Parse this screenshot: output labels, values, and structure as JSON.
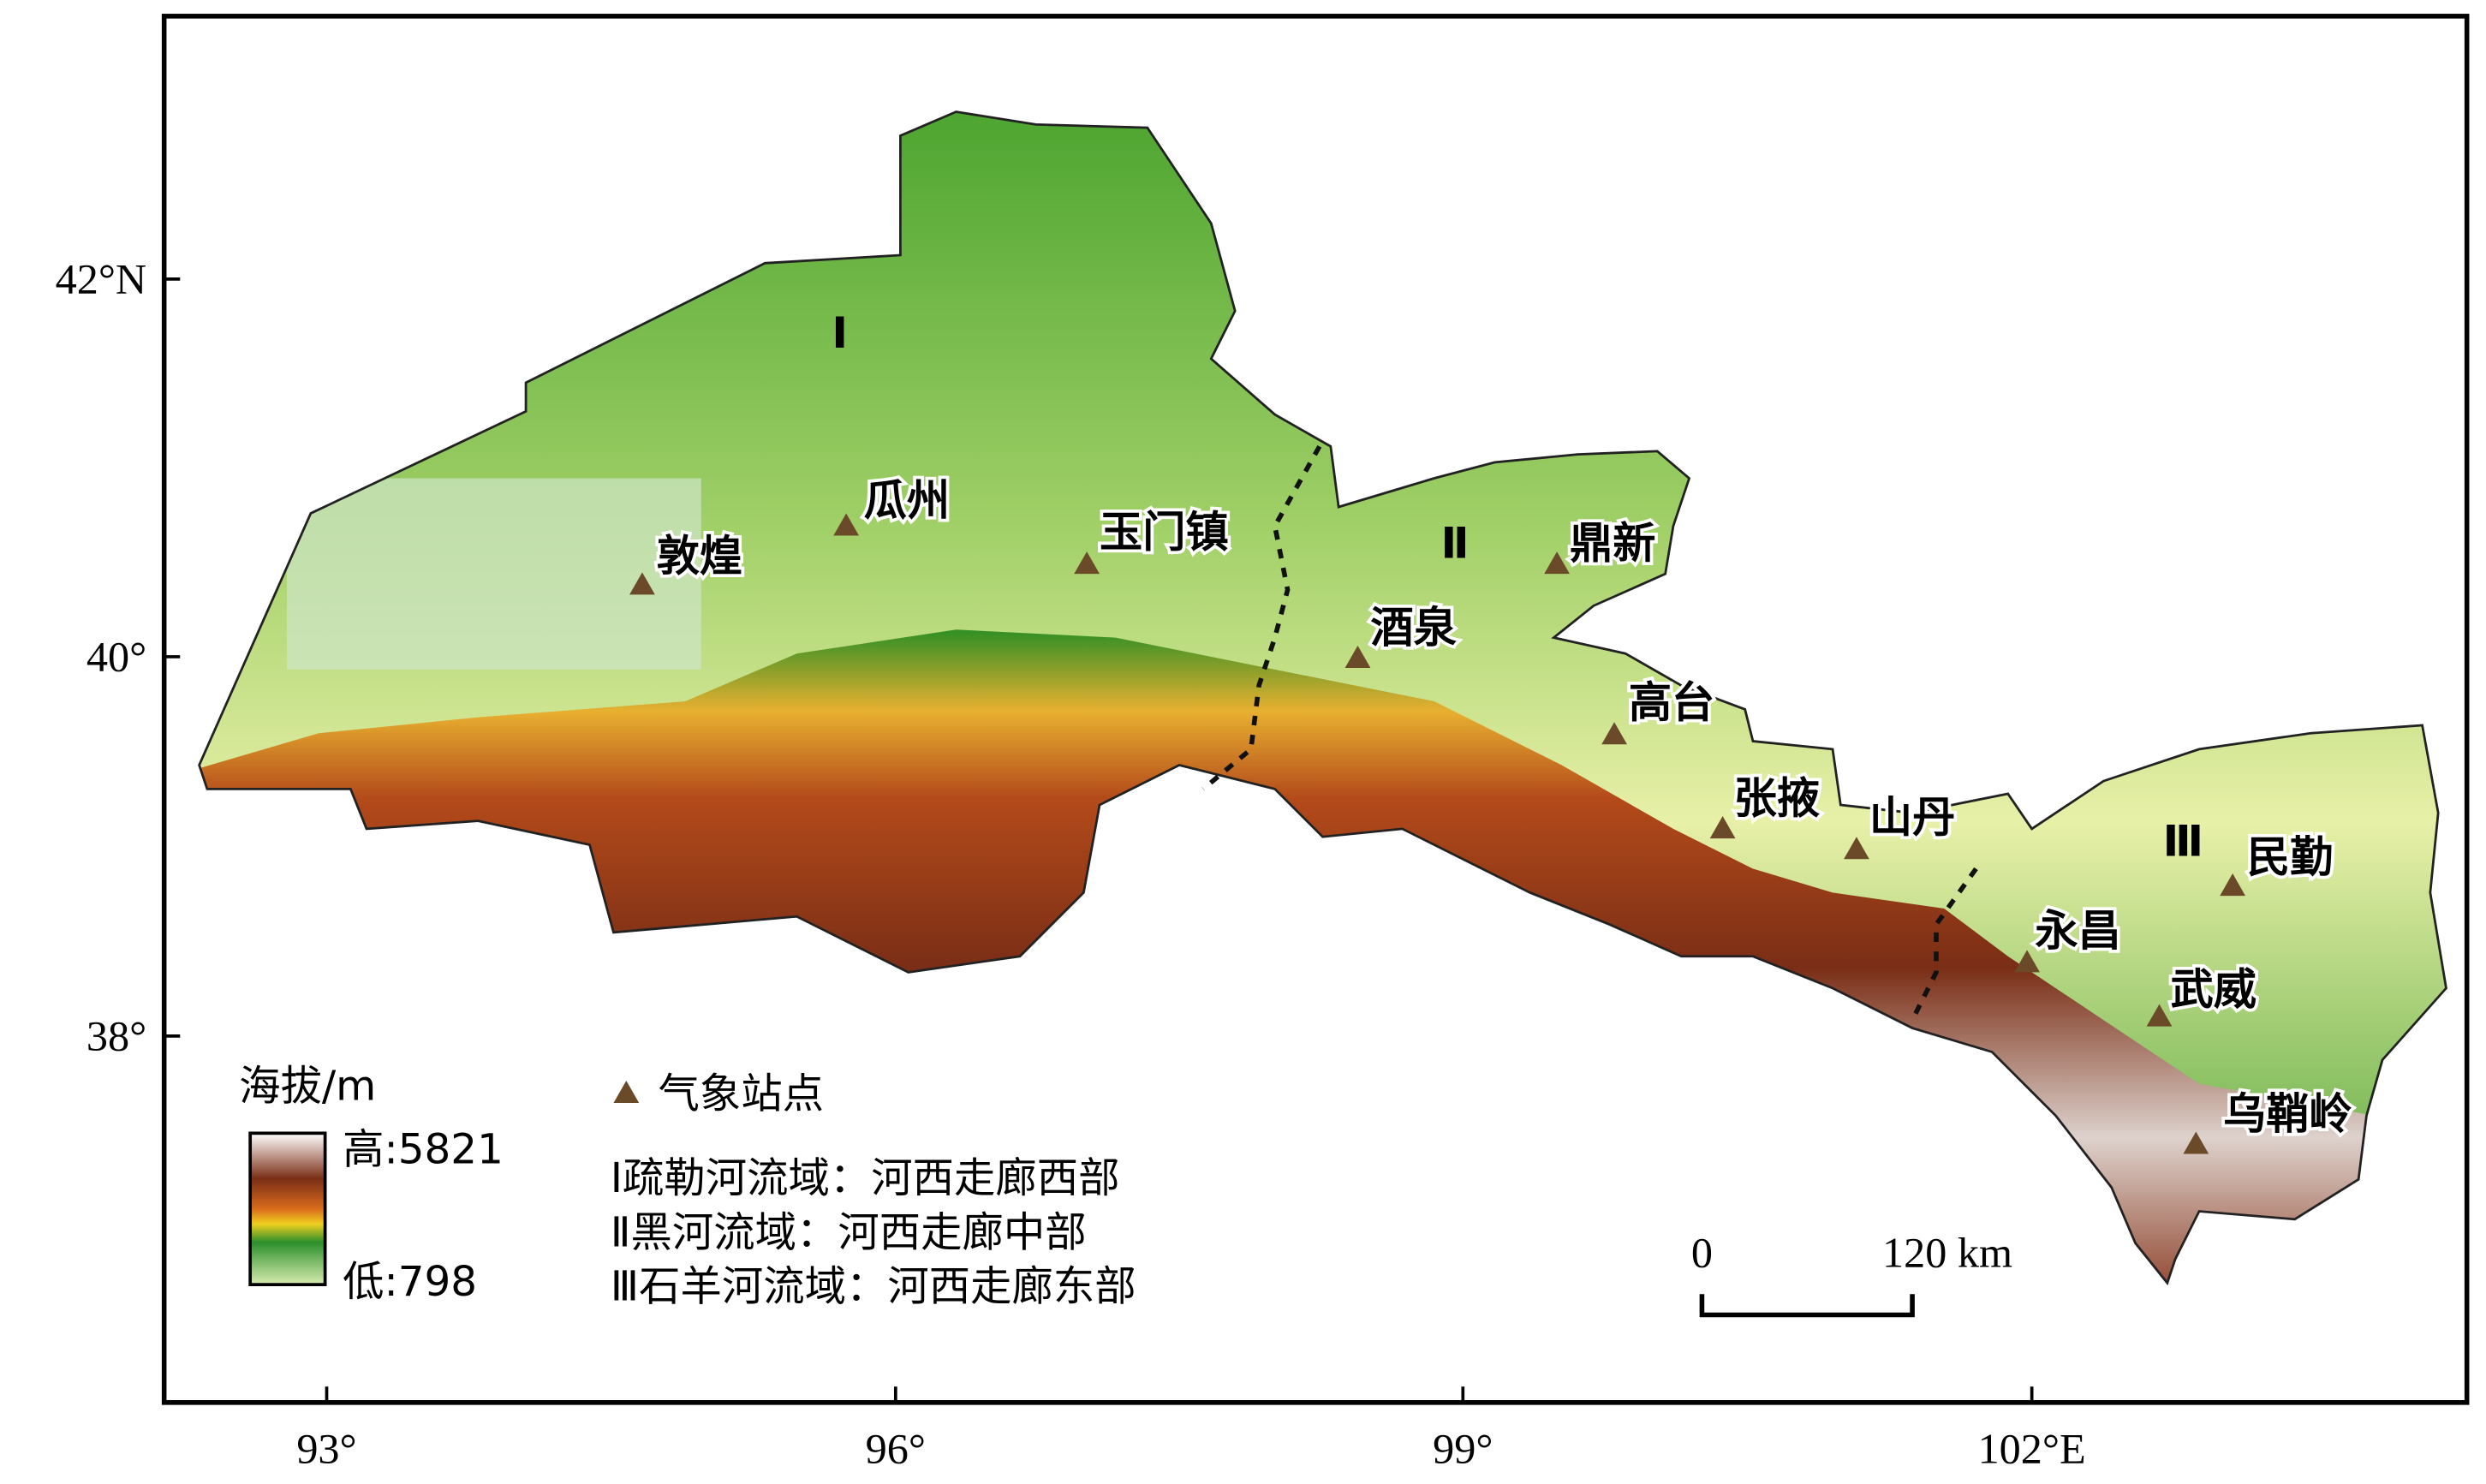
{
  "axes": {
    "x_ticks": [
      "93°",
      "96°",
      "99°",
      "102°E"
    ],
    "y_ticks": [
      "42°N",
      "40°",
      "38°"
    ]
  },
  "stations": [
    "敦煌",
    "瓜州",
    "玉门镇",
    "鼎新",
    "酒泉",
    "高台",
    "张掖",
    "山丹",
    "永昌",
    "武威",
    "民勤",
    "乌鞘岭"
  ],
  "regions": [
    "Ⅰ",
    "Ⅱ",
    "Ⅲ"
  ],
  "legend": {
    "elevation_title": "海拔/m",
    "high": "高:5821",
    "low": "低:798",
    "station": "气象站点",
    "basins": [
      "Ⅰ疏勒河流域：河西走廊西部",
      "Ⅱ黑河流域：河西走廊中部",
      "Ⅲ石羊河流域：河西走廊东部"
    ]
  },
  "scale_bar": {
    "start": "0",
    "end": "120 km"
  }
}
